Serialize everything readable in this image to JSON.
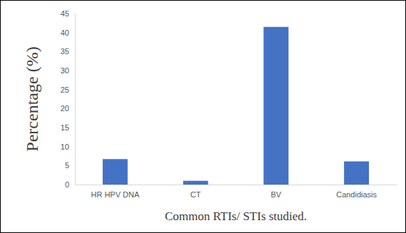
{
  "chart_data": {
    "type": "bar",
    "x_label": "Common RTIs/ STIs studied.",
    "y_label": "Percentage (%)",
    "categories": [
      "HR HPV DNA",
      "CT",
      "BV",
      "Candidiasis"
    ],
    "values": [
      6.7,
      1.0,
      41.5,
      6.1
    ],
    "color": "#4472c4",
    "ylim": [
      0,
      45
    ],
    "yticks": [
      0,
      5,
      10,
      15,
      20,
      25,
      30,
      35,
      40,
      45
    ],
    "grid": false
  }
}
